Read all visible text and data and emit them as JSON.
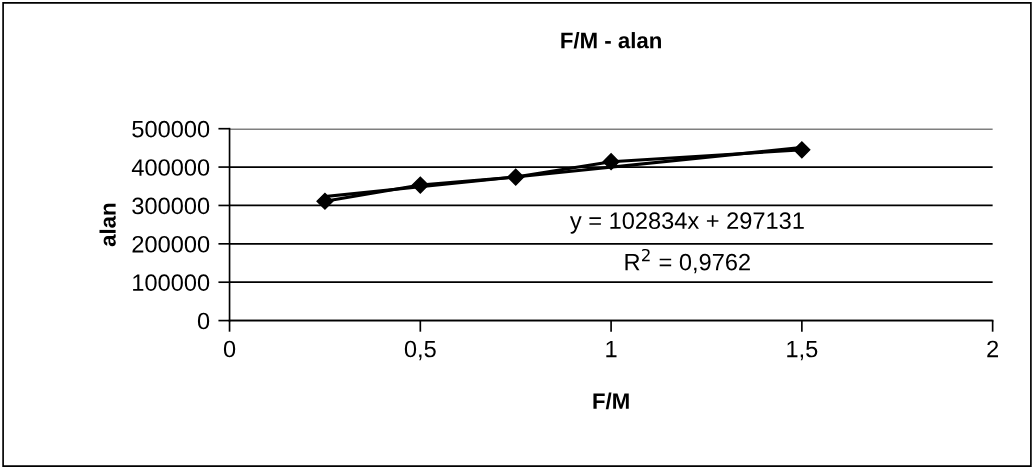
{
  "chart_data": {
    "type": "line",
    "title": "F/M - alan",
    "xlabel": "F/M",
    "ylabel": "alan",
    "xlim": [
      0,
      2
    ],
    "xticks": [
      0,
      {
        "value": 0.5,
        "label": "0,5"
      },
      1,
      {
        "value": 1.5,
        "label": "1,5"
      },
      2
    ],
    "ylim": [
      0,
      500000
    ],
    "yticks": [
      0,
      100000,
      200000,
      300000,
      400000,
      500000
    ],
    "grid": "y",
    "legend": false,
    "series": [
      {
        "color": "#000000",
        "marker": "diamond",
        "x": [
          0.25,
          0.5,
          0.75,
          1,
          1.5
        ],
        "values": [
          311000,
          353000,
          374000,
          414000,
          445000
        ]
      },
      {
        "color": "#000000",
        "marker": "none",
        "x": [
          0.25,
          1.5
        ],
        "values": [
          323000,
          451000
        ]
      }
    ],
    "annotations": [
      "y = 102834x + 297131",
      "R$^{2}$ = 0,9762"
    ]
  }
}
